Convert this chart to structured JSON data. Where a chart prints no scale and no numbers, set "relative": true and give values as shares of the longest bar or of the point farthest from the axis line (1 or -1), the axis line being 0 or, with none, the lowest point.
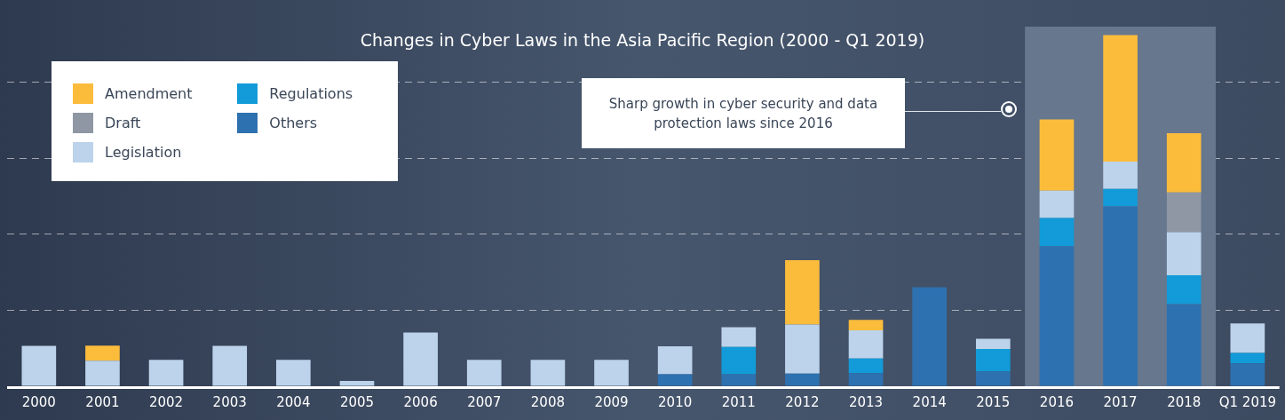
{
  "chart_data": {
    "type": "bar",
    "title": "Changes in Cyber Laws in the Asia Pacific Region (2000 - Q1 2019)",
    "relative": true,
    "stacked": true,
    "grid": "y",
    "line_style": "dashed",
    "legend": "top left",
    "categories": [
      "2000",
      "2001",
      "2002",
      "2003",
      "2004",
      "2005",
      "2006",
      "2007",
      "2008",
      "2009",
      "2010",
      "2011",
      "2012",
      "2013",
      "2014",
      "2015",
      "2016",
      "2017",
      "2018",
      "Q1 2019"
    ],
    "series": [
      {
        "name": "Others",
        "color": "#2e71b0",
        "values": [
          null,
          null,
          null,
          null,
          null,
          null,
          null,
          null,
          null,
          null,
          0.034,
          0.034,
          0.036,
          0.037,
          0.282,
          0.042,
          0.399,
          0.512,
          0.234,
          0.065
        ]
      },
      {
        "name": "Regulations",
        "color": "#129bd8",
        "values": [
          null,
          null,
          null,
          null,
          null,
          null,
          null,
          null,
          null,
          null,
          null,
          0.078,
          null,
          0.042,
          null,
          0.064,
          0.08,
          0.05,
          0.082,
          0.03
        ]
      },
      {
        "name": "Legislation",
        "color": "#bcd3eb",
        "values": [
          0.115,
          0.073,
          0.075,
          0.115,
          0.075,
          0.015,
          0.153,
          0.075,
          0.075,
          0.075,
          0.08,
          0.056,
          0.14,
          0.08,
          null,
          0.029,
          0.078,
          0.078,
          0.123,
          0.084
        ]
      },
      {
        "name": "Draft",
        "color": "#8f97a4",
        "values": [
          null,
          null,
          null,
          null,
          null,
          null,
          null,
          null,
          null,
          null,
          null,
          null,
          null,
          null,
          null,
          null,
          null,
          null,
          0.113,
          null
        ]
      },
      {
        "name": "Amendment",
        "color": "#fbbc3c",
        "values": [
          null,
          0.043,
          null,
          null,
          null,
          null,
          null,
          null,
          null,
          null,
          null,
          null,
          0.183,
          0.03,
          null,
          null,
          0.203,
          0.36,
          0.169,
          null
        ]
      }
    ],
    "bands": [
      {
        "axis": "x",
        "from": "2016",
        "to": "2018",
        "color": "#66778e"
      }
    ],
    "annotations": [
      "Sharp growth in cyber security and data protection laws since 2016"
    ]
  }
}
